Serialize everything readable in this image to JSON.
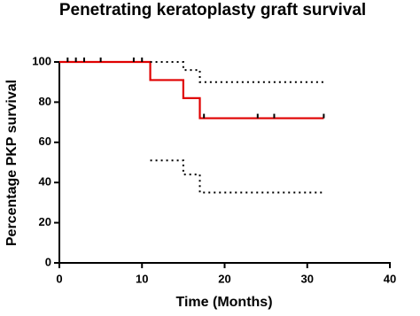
{
  "chart_data": {
    "type": "step",
    "title": "Penetrating keratoplasty graft survival",
    "x_label": "Time (Months)",
    "y_label": "Percentage PKP survival",
    "xlim": [
      0,
      40
    ],
    "xticks": [
      0,
      10,
      20,
      30,
      40
    ],
    "ylim": [
      0,
      100
    ],
    "yticks": [
      0,
      20,
      40,
      60,
      80,
      100
    ],
    "grid": false,
    "series": [
      {
        "color": "#e00000",
        "style": "solid",
        "x": [
          0,
          11,
          11,
          15,
          15,
          17,
          17,
          32
        ],
        "values": [
          100,
          100,
          91,
          91,
          82,
          82,
          72,
          72
        ]
      },
      {
        "color": "#000000",
        "style": "dotted",
        "x": [
          11,
          15,
          15,
          17,
          17,
          32
        ],
        "values": [
          100,
          100,
          96,
          96,
          90,
          90
        ]
      },
      {
        "color": "#000000",
        "style": "dotted",
        "x": [
          11,
          15,
          15,
          17,
          17,
          32
        ],
        "values": [
          51,
          51,
          44,
          44,
          35,
          35
        ]
      }
    ],
    "censored": {
      "color": "#000000",
      "x": [
        1,
        2,
        3,
        5,
        9,
        10,
        17.5,
        24,
        26,
        32
      ],
      "values": [
        100,
        100,
        100,
        100,
        100,
        100,
        72,
        72,
        72,
        72
      ]
    }
  }
}
